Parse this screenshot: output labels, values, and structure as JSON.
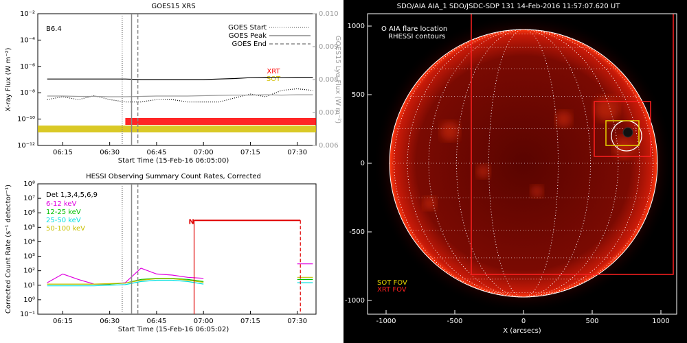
{
  "chart_data": [
    {
      "type": "line",
      "title": "GOES15 XRS",
      "xlabel": "Start Time (15-Feb-16 06:05:00)",
      "ylabel": "X-ray Flux (W m⁻²)",
      "y2label": "GOES15 Lyα Flux (W m⁻²)",
      "log_y": true,
      "xlim": [
        "06:07",
        "07:36"
      ],
      "xticks": [
        "06:15",
        "06:30",
        "06:45",
        "07:00",
        "07:15",
        "07:30"
      ],
      "ylim": [
        1e-12,
        0.01
      ],
      "yticks": [
        {
          "value": 1e-12,
          "label": "10⁻¹²"
        },
        {
          "value": 1e-10,
          "label": "10⁻¹⁰"
        },
        {
          "value": 1e-08,
          "label": "10⁻⁸"
        },
        {
          "value": 1e-06,
          "label": "10⁻⁶"
        },
        {
          "value": 0.0001,
          "label": "10⁻⁴"
        },
        {
          "value": 0.01,
          "label": "10⁻²"
        }
      ],
      "y2lim": [
        0.006,
        0.01
      ],
      "y2ticks": [
        0.006,
        0.007,
        0.008,
        0.009,
        {
          "value": 0.01,
          "label": "0.010"
        }
      ],
      "annotation": "B6.4",
      "x": [
        "06:10",
        "06:15",
        "06:20",
        "06:25",
        "06:30",
        "06:35",
        "06:40",
        "06:45",
        "06:50",
        "06:55",
        "07:00",
        "07:05",
        "07:10",
        "07:15",
        "07:20",
        "07:25",
        "07:30",
        "07:35"
      ],
      "series": [
        {
          "color": "#000000",
          "style": "solid",
          "values": [
            1.1e-07,
            1.1e-07,
            1.1e-07,
            1.1e-07,
            1.1e-07,
            1.1e-07,
            1e-07,
            1e-07,
            1e-07,
            1e-07,
            1e-07,
            1.1e-07,
            1.2e-07,
            1.4e-07,
            1.5e-07,
            1.4e-07,
            1.5e-07,
            1.5e-07
          ]
        },
        {
          "color": "#000000",
          "style": "dotted",
          "values": [
            3e-09,
            5e-09,
            3e-09,
            6e-09,
            3e-09,
            2e-09,
            2e-09,
            3e-09,
            3e-09,
            2e-09,
            2e-09,
            2e-09,
            4e-09,
            8e-09,
            5e-09,
            1.5e-08,
            2e-08,
            1.5e-08
          ]
        },
        {
          "color": "#999999",
          "style": "solid",
          "axis": "y2",
          "values": [
            0.0075,
            0.0075,
            0.00749,
            0.00749,
            0.00748,
            0.00748,
            0.00749,
            0.0075,
            0.0075,
            0.0075,
            0.00751,
            0.00752,
            0.00753,
            0.00753,
            0.00754,
            0.00753,
            0.00754,
            0.00754
          ]
        }
      ],
      "markers": [
        {
          "label": "GOES Start",
          "x": "06:34",
          "style": "dotted"
        },
        {
          "label": "GOES Peak",
          "x": "06:37",
          "style": "solid"
        },
        {
          "label": "GOES End",
          "x": "06:39",
          "style": "dashed"
        }
      ],
      "coverage": [
        {
          "label": "XRT",
          "color": "#ff0000",
          "start": "06:35",
          "end": "07:36"
        },
        {
          "label": "SOT",
          "color": "#d4c000",
          "start": "06:07",
          "end": "07:36"
        }
      ]
    },
    {
      "type": "line",
      "title": "HESSI Observing Summary Count Rates, Corrected",
      "xlabel": "Start Time (15-Feb-16 06:05:02)",
      "ylabel": "Corrected Count Rate (s⁻¹ detector⁻¹)",
      "log_y": true,
      "xlim": [
        "06:07",
        "07:36"
      ],
      "xticks": [
        "06:15",
        "06:30",
        "06:45",
        "07:00",
        "07:15",
        "07:30"
      ],
      "ylim": [
        0.1,
        100000000
      ],
      "yticks": [
        {
          "value": 0.1,
          "label": "10⁻¹"
        },
        {
          "value": 1,
          "label": "10⁰"
        },
        {
          "value": 10,
          "label": "10¹"
        },
        {
          "value": 100,
          "label": "10²"
        },
        {
          "value": 1000,
          "label": "10³"
        },
        {
          "value": 10000,
          "label": "10⁴"
        },
        {
          "value": 100000,
          "label": "10⁵"
        },
        {
          "value": 1000000,
          "label": "10⁶"
        },
        {
          "value": 10000000,
          "label": "10⁷"
        },
        {
          "value": 100000000,
          "label": "10⁸"
        }
      ],
      "detectors": "Det 1,3,4,5,6,9",
      "x": [
        "06:10",
        "06:15",
        "06:20",
        "06:25",
        "06:30",
        "06:35",
        "06:40",
        "06:45",
        "06:50",
        "06:55",
        "07:00",
        "07:05",
        "07:10",
        "07:15",
        "07:20",
        "07:25",
        "07:30",
        "07:35"
      ],
      "series": [
        {
          "name": "6-12 keV",
          "color": "#e000e0",
          "style": "solid",
          "values": [
            15,
            60,
            25,
            12,
            12,
            15,
            150,
            60,
            50,
            35,
            30,
            null,
            null,
            null,
            null,
            null,
            300,
            300
          ]
        },
        {
          "name": "12-25 keV",
          "color": "#00c000",
          "style": "solid",
          "values": [
            12,
            12,
            12,
            12,
            12,
            14,
            25,
            30,
            30,
            25,
            18,
            null,
            null,
            null,
            null,
            null,
            25,
            25
          ]
        },
        {
          "name": "25-50 keV",
          "color": "#00e0e0",
          "style": "solid",
          "values": [
            9,
            9,
            9,
            9,
            10,
            11,
            18,
            22,
            22,
            18,
            12,
            null,
            null,
            null,
            null,
            null,
            15,
            15
          ]
        },
        {
          "name": "50-100 keV",
          "color": "#c8c000",
          "style": "solid",
          "values": [
            12,
            12,
            12,
            12,
            13,
            14,
            22,
            28,
            28,
            22,
            16,
            null,
            null,
            null,
            null,
            null,
            35,
            35
          ]
        }
      ],
      "markers": [
        {
          "x": "06:34",
          "style": "dotted"
        },
        {
          "x": "06:37",
          "style": "solid"
        },
        {
          "x": "06:39",
          "style": "dashed"
        }
      ],
      "night": {
        "label": "N",
        "start": "06:57",
        "end": "07:31",
        "level": 300000
      }
    },
    {
      "type": "image",
      "title": "SDO/AIA AIA_1 SDO/JSDC-SDP 131 14-Feb-2016 11:57:07.620 UT",
      "xlabel": "X (arcsecs)",
      "xlim": [
        -1135,
        1115
      ],
      "ylim": [
        -1100,
        1090
      ],
      "xticks": [
        -1000,
        -500,
        0,
        500,
        1000
      ],
      "yticks": [
        -1000,
        -500,
        0,
        500,
        1000
      ],
      "solar_radius": 975,
      "flare_location": {
        "label": "O AIA flare location",
        "x": 750,
        "y": 200,
        "r": 110
      },
      "contours_label": "RHESSI contours",
      "fov": [
        {
          "label": "SOT FOV",
          "color": "#e6d600",
          "boxes": [
            [
              600,
              840,
              130,
              310
            ]
          ]
        },
        {
          "label": "XRT FOV",
          "color": "#ff2020",
          "boxes": [
            [
              -380,
              1090,
              -810,
              1150
            ],
            [
              515,
              925,
              50,
              450
            ]
          ]
        }
      ]
    }
  ]
}
